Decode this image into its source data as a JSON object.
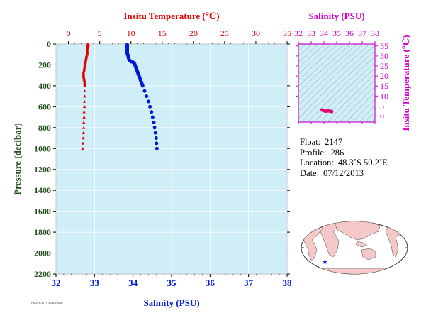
{
  "colors": {
    "plot_bg": "#cfeef7",
    "temperature": "#e00000",
    "salinity": "#0019d6",
    "ts": "#d000c8",
    "ts_points": "#e0007a",
    "axis_text_pressure": "#245020",
    "land": "#f5c8c8",
    "ocean": "#ffffff",
    "float_marker": "#0019d6"
  },
  "chart_data": [
    {
      "type": "scatter",
      "name": "profile",
      "title_top": "Insitu Temperature (℃)",
      "xlabel_bottom": "Salinity (PSU)",
      "ylabel": "Pressure (decibar)",
      "ylim": [
        2200,
        0
      ],
      "y_ticks": [
        "0",
        "200",
        "400",
        "600",
        "800",
        "1000",
        "1200",
        "1400",
        "1600",
        "1800",
        "2000",
        "2200"
      ],
      "temperature_axis": {
        "lim": [
          -2,
          35
        ],
        "ticks": [
          "0",
          "5",
          "10",
          "15",
          "20",
          "25",
          "30",
          "35"
        ]
      },
      "salinity_axis": {
        "lim": [
          32,
          38
        ],
        "ticks": [
          "32",
          "33",
          "34",
          "35",
          "36",
          "37",
          "38"
        ]
      },
      "grid": true,
      "series": [
        {
          "key": "temperature",
          "marker": "triangle",
          "color": "#e00000",
          "points": [
            [
              3.1,
              5
            ],
            [
              3.1,
              10
            ],
            [
              3.1,
              15
            ],
            [
              3.1,
              20
            ],
            [
              3.1,
              25
            ],
            [
              3.1,
              30
            ],
            [
              3.1,
              35
            ],
            [
              3.05,
              40
            ],
            [
              3.0,
              50
            ],
            [
              3.0,
              60
            ],
            [
              3.0,
              70
            ],
            [
              3.0,
              80
            ],
            [
              3.0,
              90
            ],
            [
              2.95,
              100
            ],
            [
              2.9,
              110
            ],
            [
              2.9,
              120
            ],
            [
              2.85,
              130
            ],
            [
              2.8,
              140
            ],
            [
              2.8,
              150
            ],
            [
              2.75,
              160
            ],
            [
              2.7,
              170
            ],
            [
              2.7,
              180
            ],
            [
              2.65,
              190
            ],
            [
              2.6,
              200
            ],
            [
              2.6,
              210
            ],
            [
              2.6,
              220
            ],
            [
              2.55,
              230
            ],
            [
              2.5,
              240
            ],
            [
              2.5,
              250
            ],
            [
              2.45,
              260
            ],
            [
              2.4,
              270
            ],
            [
              2.4,
              280
            ],
            [
              2.4,
              290
            ],
            [
              2.4,
              300
            ],
            [
              2.4,
              310
            ],
            [
              2.45,
              320
            ],
            [
              2.5,
              330
            ],
            [
              2.5,
              340
            ],
            [
              2.55,
              350
            ],
            [
              2.6,
              360
            ],
            [
              2.6,
              370
            ],
            [
              2.6,
              380
            ],
            [
              2.6,
              390
            ],
            [
              2.6,
              400
            ],
            [
              2.6,
              450
            ],
            [
              2.6,
              500
            ],
            [
              2.55,
              550
            ],
            [
              2.55,
              600
            ],
            [
              2.5,
              650
            ],
            [
              2.5,
              700
            ],
            [
              2.45,
              750
            ],
            [
              2.45,
              800
            ],
            [
              2.4,
              850
            ],
            [
              2.35,
              900
            ],
            [
              2.3,
              950
            ],
            [
              2.25,
              1000
            ]
          ]
        },
        {
          "key": "salinity",
          "marker": "circle",
          "color": "#0019d6",
          "points": [
            [
              33.85,
              5
            ],
            [
              33.85,
              10
            ],
            [
              33.85,
              15
            ],
            [
              33.85,
              20
            ],
            [
              33.85,
              25
            ],
            [
              33.85,
              30
            ],
            [
              33.85,
              35
            ],
            [
              33.85,
              40
            ],
            [
              33.85,
              50
            ],
            [
              33.85,
              60
            ],
            [
              33.85,
              70
            ],
            [
              33.85,
              80
            ],
            [
              33.85,
              90
            ],
            [
              33.86,
              100
            ],
            [
              33.87,
              110
            ],
            [
              33.88,
              120
            ],
            [
              33.88,
              130
            ],
            [
              33.89,
              140
            ],
            [
              33.9,
              150
            ],
            [
              33.92,
              160
            ],
            [
              33.95,
              170
            ],
            [
              34.0,
              175
            ],
            [
              34.02,
              180
            ],
            [
              34.04,
              190
            ],
            [
              34.05,
              200
            ],
            [
              34.06,
              210
            ],
            [
              34.07,
              220
            ],
            [
              34.08,
              230
            ],
            [
              34.09,
              240
            ],
            [
              34.1,
              250
            ],
            [
              34.11,
              260
            ],
            [
              34.12,
              270
            ],
            [
              34.13,
              280
            ],
            [
              34.14,
              290
            ],
            [
              34.15,
              300
            ],
            [
              34.16,
              310
            ],
            [
              34.17,
              320
            ],
            [
              34.18,
              330
            ],
            [
              34.19,
              340
            ],
            [
              34.2,
              350
            ],
            [
              34.21,
              360
            ],
            [
              34.22,
              370
            ],
            [
              34.23,
              380
            ],
            [
              34.24,
              390
            ],
            [
              34.25,
              400
            ],
            [
              34.3,
              450
            ],
            [
              34.35,
              500
            ],
            [
              34.4,
              550
            ],
            [
              34.44,
              600
            ],
            [
              34.48,
              650
            ],
            [
              34.51,
              700
            ],
            [
              34.54,
              750
            ],
            [
              34.56,
              800
            ],
            [
              34.58,
              850
            ],
            [
              34.6,
              900
            ],
            [
              34.61,
              950
            ],
            [
              34.62,
              1000
            ]
          ]
        }
      ]
    },
    {
      "type": "scatter",
      "name": "ts_diagram",
      "title": "Salinity (PSU)",
      "ylabel": "Insitu Temperature (℃)",
      "x_ticks": [
        "32",
        "33",
        "34",
        "35",
        "36",
        "37",
        "38"
      ],
      "y_ticks": [
        "0",
        "5",
        "10",
        "15",
        "20",
        "25",
        "30",
        "35"
      ],
      "xlim": [
        32,
        38
      ],
      "ylim": [
        -3,
        36
      ],
      "points": [
        [
          33.85,
          3.1
        ],
        [
          33.85,
          3.05
        ],
        [
          33.86,
          3.0
        ],
        [
          33.9,
          2.9
        ],
        [
          33.95,
          2.8
        ],
        [
          34.0,
          2.7
        ],
        [
          34.05,
          2.6
        ],
        [
          34.1,
          2.5
        ],
        [
          34.15,
          2.45
        ],
        [
          34.2,
          2.4
        ],
        [
          34.25,
          2.55
        ],
        [
          34.3,
          2.6
        ],
        [
          34.35,
          2.6
        ],
        [
          34.4,
          2.55
        ],
        [
          34.45,
          2.5
        ],
        [
          34.5,
          2.45
        ],
        [
          34.55,
          2.4
        ],
        [
          34.6,
          2.3
        ],
        [
          34.62,
          2.25
        ]
      ]
    }
  ],
  "info": {
    "float_label": "Float:",
    "float_value": "2147",
    "profile_label": "Profile:",
    "profile_value": "286",
    "location_label": "Location:",
    "location_value": "48.3˚S  50.2˚E",
    "date_label": "Date:",
    "date_value": "07/12/2013"
  },
  "map": {
    "marker_lat": -48.3,
    "marker_lon": 50.2
  },
  "footnote": "PROFILE/TS DIAGRAM"
}
